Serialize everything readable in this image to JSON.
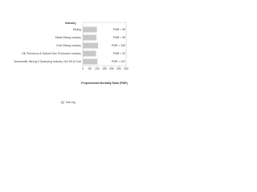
{
  "chart_data": {
    "type": "barh",
    "category_header": "Industry",
    "categories": [
      "Mining",
      "Metal Mining Industry",
      "Coal Mining Industry",
      "Oil, Petroleum & Natural Gas Production Industry",
      "Nonmetallic Mining & Quarrying Industry, Not Oil & Coal"
    ],
    "series": [
      {
        "name": "Non-sig",
        "color": "#c8c8c8",
        "values": [
          98,
          95,
          106,
          92,
          102
        ],
        "value_labels": [
          "PMR = 98",
          "PMR = 95",
          "PMR = 106",
          "PMR = 92",
          "PMR = 102"
        ]
      }
    ],
    "xlabel": "Proportionate Mortality Ratio (PMR)",
    "xlim": [
      0,
      300
    ],
    "xticks": [
      0,
      50,
      100,
      150,
      200,
      250,
      300
    ],
    "legend": "bottom"
  }
}
